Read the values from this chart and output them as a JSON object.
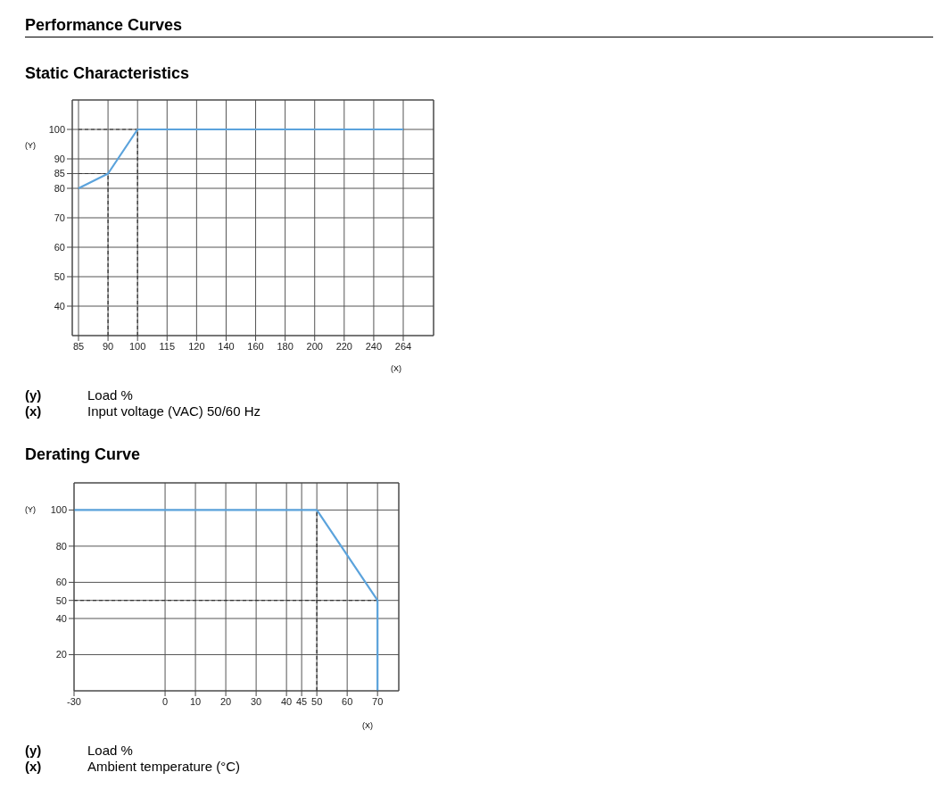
{
  "chart_data": [
    {
      "type": "line",
      "title": "Performance Curves",
      "subtitle": "Static Characteristics",
      "ylabel": "(Y)",
      "xlabel": "(X)",
      "categories": [
        "85",
        "90",
        "100",
        "115",
        "120",
        "140",
        "160",
        "180",
        "200",
        "220",
        "240",
        "264"
      ],
      "series": [
        {
          "color": "#5ba3dc",
          "values": [
            80,
            85,
            100,
            100,
            100,
            100,
            100,
            100,
            100,
            100,
            100,
            100
          ]
        }
      ],
      "ylim": [
        30,
        110
      ],
      "yticks": [
        40,
        50,
        60,
        70,
        80,
        85,
        90,
        100
      ],
      "grid": true,
      "marker": "none",
      "line_style": "solid",
      "ref_lines": [
        {
          "axis": "x",
          "value": "90",
          "color": "#333333",
          "line_style": "dashed"
        },
        {
          "axis": "x",
          "value": "100",
          "color": "#333333",
          "line_style": "dashed"
        },
        {
          "axis": "y",
          "value": 85,
          "color": "#333333",
          "line_style": "dashed"
        },
        {
          "axis": "y",
          "value": 100,
          "color": "#333333",
          "line_style": "dashed"
        }
      ],
      "annotations": [
        "(y)",
        "Load %",
        "(x)",
        "Input voltage (VAC) 50/60 Hz"
      ]
    },
    {
      "type": "line",
      "title": "Derating Curve",
      "ylabel": "(Y)",
      "xlabel": "(X)",
      "x": [
        -30,
        50,
        70,
        70
      ],
      "series": [
        {
          "color": "#5ba3dc",
          "values": [
            100,
            100,
            50,
            0
          ]
        },
        {
          "type": "line",
          "x": [
            50,
            50
          ],
          "values": [
            0,
            100
          ],
          "color": "#333333",
          "line_style": "dashed"
        },
        {
          "type": "line",
          "x": [
            -30,
            70
          ],
          "values": [
            50,
            50
          ],
          "color": "#333333",
          "line_style": "dashed"
        }
      ],
      "xlim": [
        -30,
        77
      ],
      "xticks": [
        -30,
        0,
        10,
        20,
        30,
        40,
        45,
        50,
        60,
        70
      ],
      "ylim": [
        0,
        115
      ],
      "yticks": [
        20,
        40,
        50,
        60,
        80,
        100
      ],
      "grid": true,
      "marker": "none",
      "line_style": "solid",
      "annotations": [
        "(y)",
        "Load %",
        "(x)",
        "Ambient temperature (°C)"
      ]
    }
  ]
}
